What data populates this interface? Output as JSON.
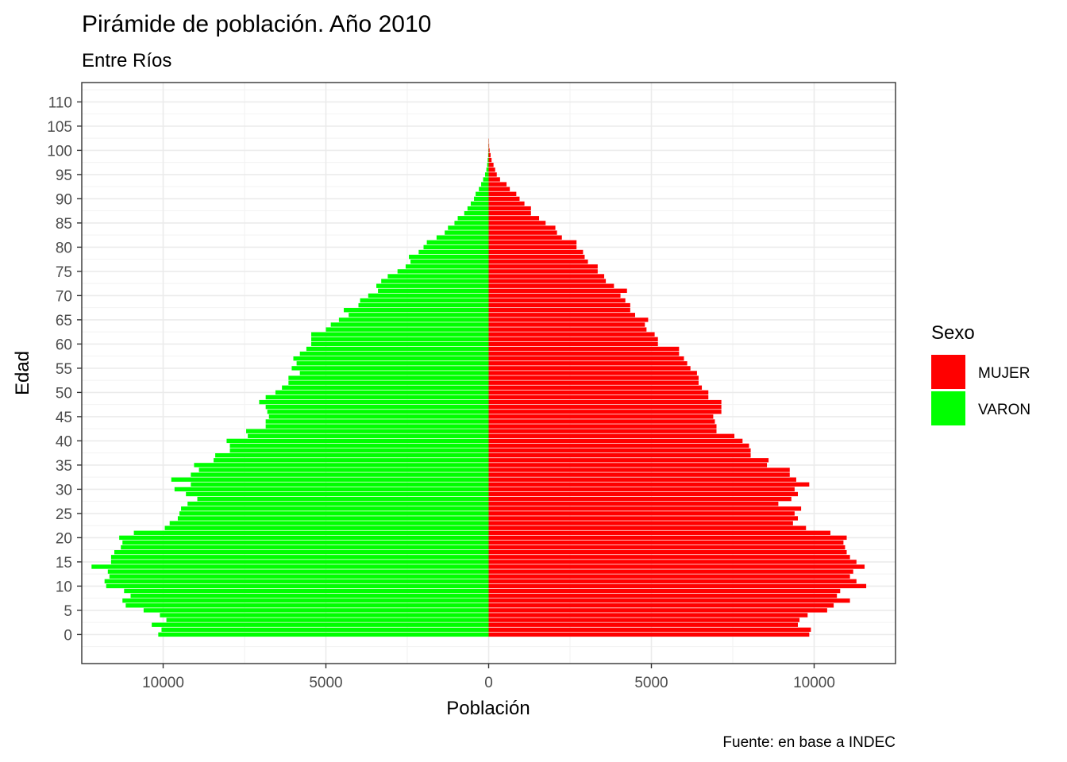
{
  "chart_data": {
    "type": "bar",
    "orientation": "horizontal",
    "title": "Pirámide de población. Año 2010",
    "subtitle": "Entre Ríos",
    "xlabel": "Población",
    "ylabel": "Edad",
    "caption": "Fuente: en base a INDEC",
    "xlim": [
      -12500,
      12500
    ],
    "ylim": [
      -6,
      114
    ],
    "x_ticks": [
      -10000,
      -5000,
      0,
      5000,
      10000
    ],
    "x_tick_labels": [
      "10000",
      "5000",
      "0",
      "5000",
      "10000"
    ],
    "y_ticks": [
      0,
      5,
      10,
      15,
      20,
      25,
      30,
      35,
      40,
      45,
      50,
      55,
      60,
      65,
      70,
      75,
      80,
      85,
      90,
      95,
      100,
      105,
      110
    ],
    "grid": true,
    "legend": {
      "title": "Sexo",
      "position": "right"
    },
    "categories": [
      0,
      1,
      2,
      3,
      4,
      5,
      6,
      7,
      8,
      9,
      10,
      11,
      12,
      13,
      14,
      15,
      16,
      17,
      18,
      19,
      20,
      21,
      22,
      23,
      24,
      25,
      26,
      27,
      28,
      29,
      30,
      31,
      32,
      33,
      34,
      35,
      36,
      37,
      38,
      39,
      40,
      41,
      42,
      43,
      44,
      45,
      46,
      47,
      48,
      49,
      50,
      51,
      52,
      53,
      54,
      55,
      56,
      57,
      58,
      59,
      60,
      61,
      62,
      63,
      64,
      65,
      66,
      67,
      68,
      69,
      70,
      71,
      72,
      73,
      74,
      75,
      76,
      77,
      78,
      79,
      80,
      81,
      82,
      83,
      84,
      85,
      86,
      87,
      88,
      89,
      90,
      91,
      92,
      93,
      94,
      95,
      96,
      97,
      98,
      99,
      100,
      101,
      102
    ],
    "series": [
      {
        "name": "MUJER",
        "color": "#FF0000",
        "values": [
          9850,
          9900,
          9500,
          9550,
          9800,
          10400,
          10600,
          11100,
          10700,
          10800,
          11600,
          11300,
          11100,
          11200,
          11550,
          11300,
          11100,
          11000,
          10950,
          10900,
          11000,
          10500,
          9750,
          9350,
          9500,
          9400,
          9600,
          8900,
          9300,
          9500,
          9400,
          9850,
          9450,
          9250,
          9250,
          8550,
          8600,
          8050,
          8050,
          8000,
          7800,
          7550,
          7000,
          7000,
          6950,
          6900,
          7150,
          7150,
          7150,
          6750,
          6750,
          6550,
          6450,
          6450,
          6400,
          6200,
          6100,
          6000,
          5850,
          5850,
          5200,
          5200,
          5100,
          4850,
          4800,
          4900,
          4500,
          4350,
          4350,
          4200,
          4050,
          4250,
          3850,
          3600,
          3550,
          3350,
          3350,
          3050,
          2950,
          2900,
          2700,
          2700,
          2250,
          2100,
          2050,
          1750,
          1550,
          1300,
          1300,
          1100,
          950,
          850,
          650,
          550,
          350,
          250,
          200,
          150,
          90,
          60,
          30,
          15,
          8
        ]
      },
      {
        "name": "VARON",
        "color": "#00FF00",
        "values": [
          10150,
          10050,
          10350,
          9900,
          10100,
          10600,
          11150,
          11250,
          11000,
          11200,
          11750,
          11800,
          11650,
          11700,
          12200,
          11600,
          11600,
          11500,
          11300,
          11250,
          11350,
          10900,
          9950,
          9800,
          9550,
          9500,
          9450,
          9250,
          8950,
          9300,
          9650,
          9150,
          9750,
          9150,
          8900,
          9050,
          8450,
          8400,
          7950,
          7950,
          8050,
          7400,
          7450,
          6850,
          6850,
          6750,
          6800,
          6850,
          7050,
          6850,
          6550,
          6350,
          6150,
          6150,
          5800,
          6050,
          5900,
          6000,
          5800,
          5600,
          5450,
          5450,
          5450,
          5000,
          4850,
          4600,
          4300,
          4450,
          4000,
          3950,
          3700,
          3400,
          3450,
          3300,
          3100,
          2800,
          2550,
          2400,
          2450,
          2150,
          2000,
          1900,
          1600,
          1350,
          1250,
          1050,
          950,
          750,
          650,
          550,
          450,
          400,
          300,
          230,
          170,
          110,
          70,
          45,
          30,
          15,
          8,
          4,
          2
        ]
      }
    ]
  }
}
